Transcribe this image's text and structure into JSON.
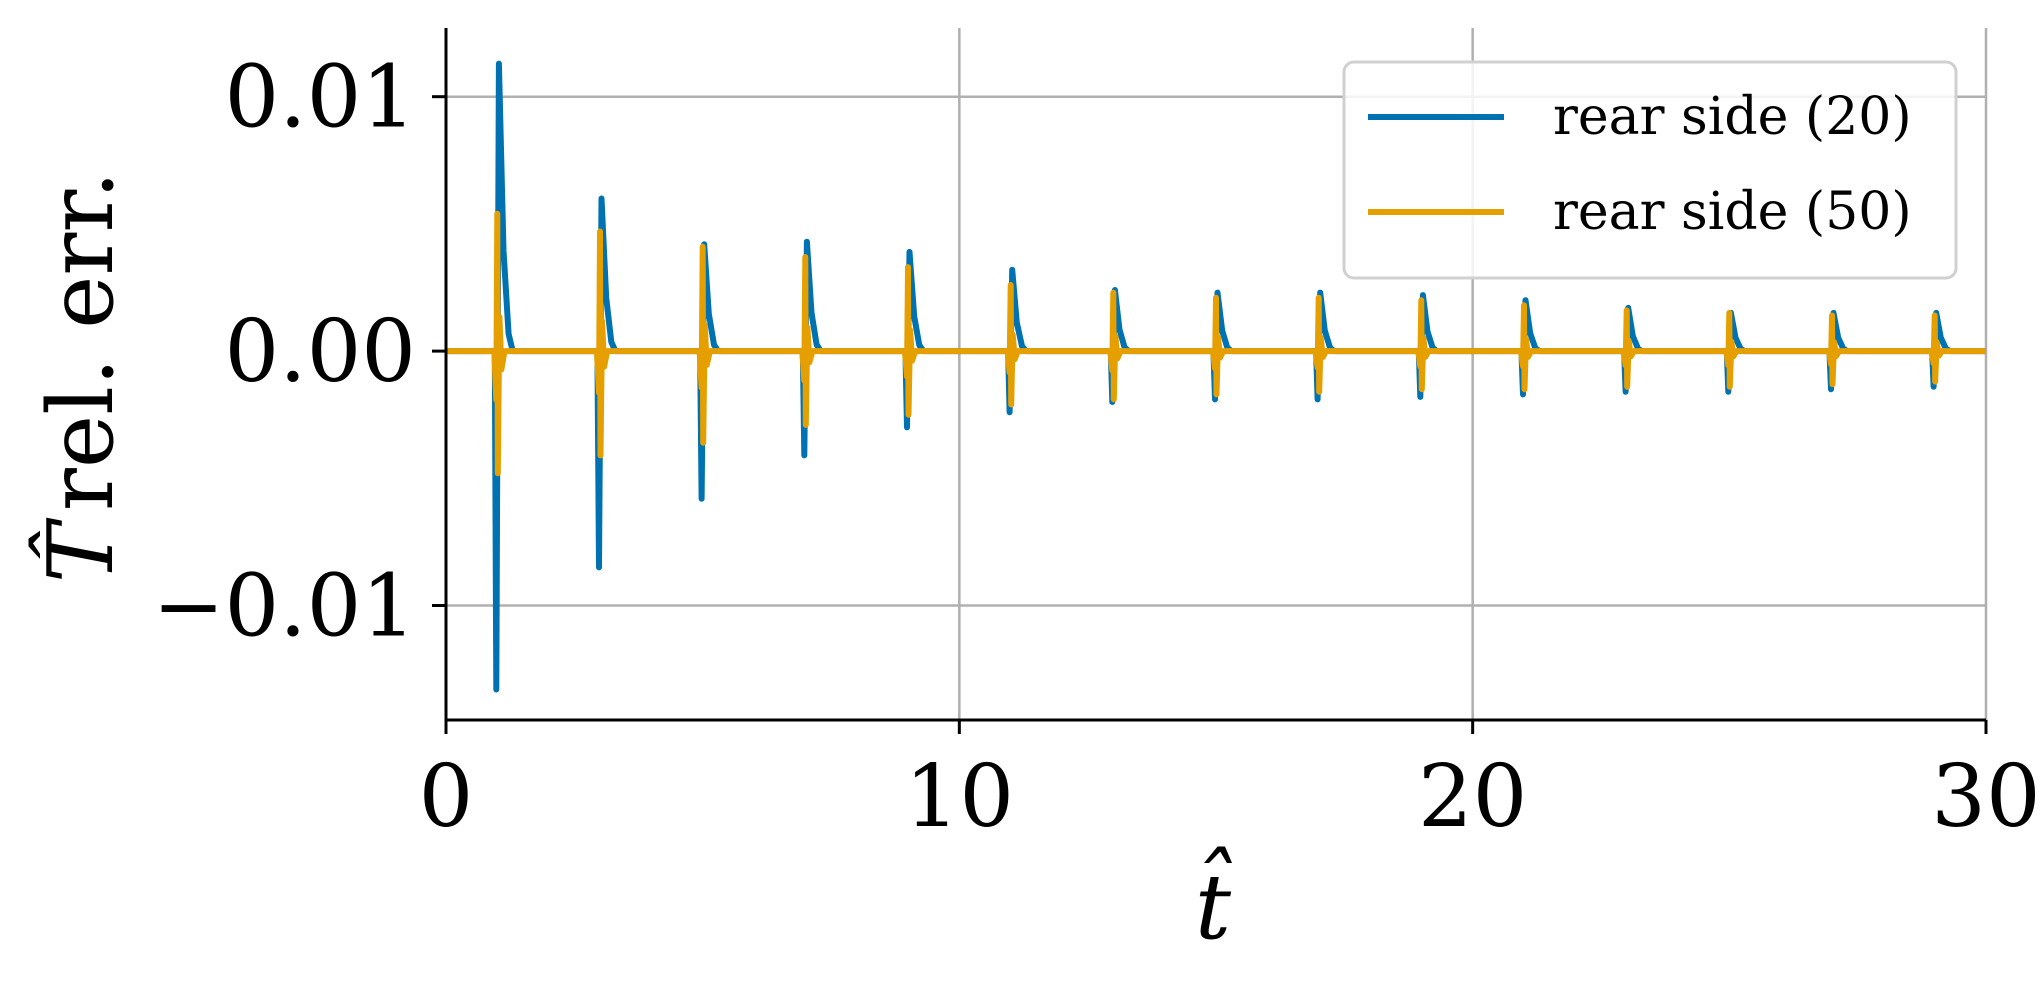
{
  "chart_data": {
    "type": "line",
    "title": "",
    "xlabel": "t̂",
    "ylabel_symbol": "T̂",
    "ylabel": "rel. err.",
    "xlim": [
      0,
      30
    ],
    "ylim": [
      -0.0145,
      0.0127
    ],
    "xticks": [
      0,
      10,
      20,
      30
    ],
    "xtick_labels": [
      "0",
      "10",
      "20",
      "30"
    ],
    "yticks": [
      0.01,
      0.0,
      -0.01
    ],
    "ytick_labels": [
      "0.01",
      "0.00",
      "−0.01"
    ],
    "grid": true,
    "legend_position": "top-right",
    "series": [
      {
        "name": "rear side (20)",
        "color": "#0072B2",
        "spike_times": [
          1,
          3,
          5,
          7,
          9,
          11,
          13,
          15,
          17,
          19,
          21,
          23,
          25,
          27,
          29
        ],
        "peak_values": [
          0.0113,
          0.006,
          0.0042,
          0.0043,
          0.0039,
          0.0032,
          0.0024,
          0.0023,
          0.0023,
          0.0022,
          0.002,
          0.0017,
          0.0015,
          0.0015,
          0.0015
        ],
        "trough_values": [
          -0.0133,
          -0.0085,
          -0.0058,
          -0.0041,
          -0.003,
          -0.0024,
          -0.002,
          -0.0019,
          -0.0019,
          -0.0018,
          -0.0017,
          -0.0016,
          -0.0016,
          -0.0015,
          -0.0014
        ]
      },
      {
        "name": "rear side (50)",
        "color": "#E69F00",
        "spike_times": [
          1,
          3,
          5,
          7,
          9,
          11,
          13,
          15,
          17,
          19,
          21,
          23,
          25,
          27,
          29
        ],
        "peak_values": [
          0.0054,
          0.0047,
          0.0041,
          0.0037,
          0.0033,
          0.0026,
          0.0023,
          0.0021,
          0.0021,
          0.002,
          0.0018,
          0.0016,
          0.0015,
          0.0014,
          0.0014
        ],
        "trough_values": [
          -0.0048,
          -0.0041,
          -0.0036,
          -0.0029,
          -0.0025,
          -0.0021,
          -0.0019,
          -0.0017,
          -0.0016,
          -0.0015,
          -0.0015,
          -0.0014,
          -0.0014,
          -0.0013,
          -0.0012
        ]
      }
    ]
  }
}
